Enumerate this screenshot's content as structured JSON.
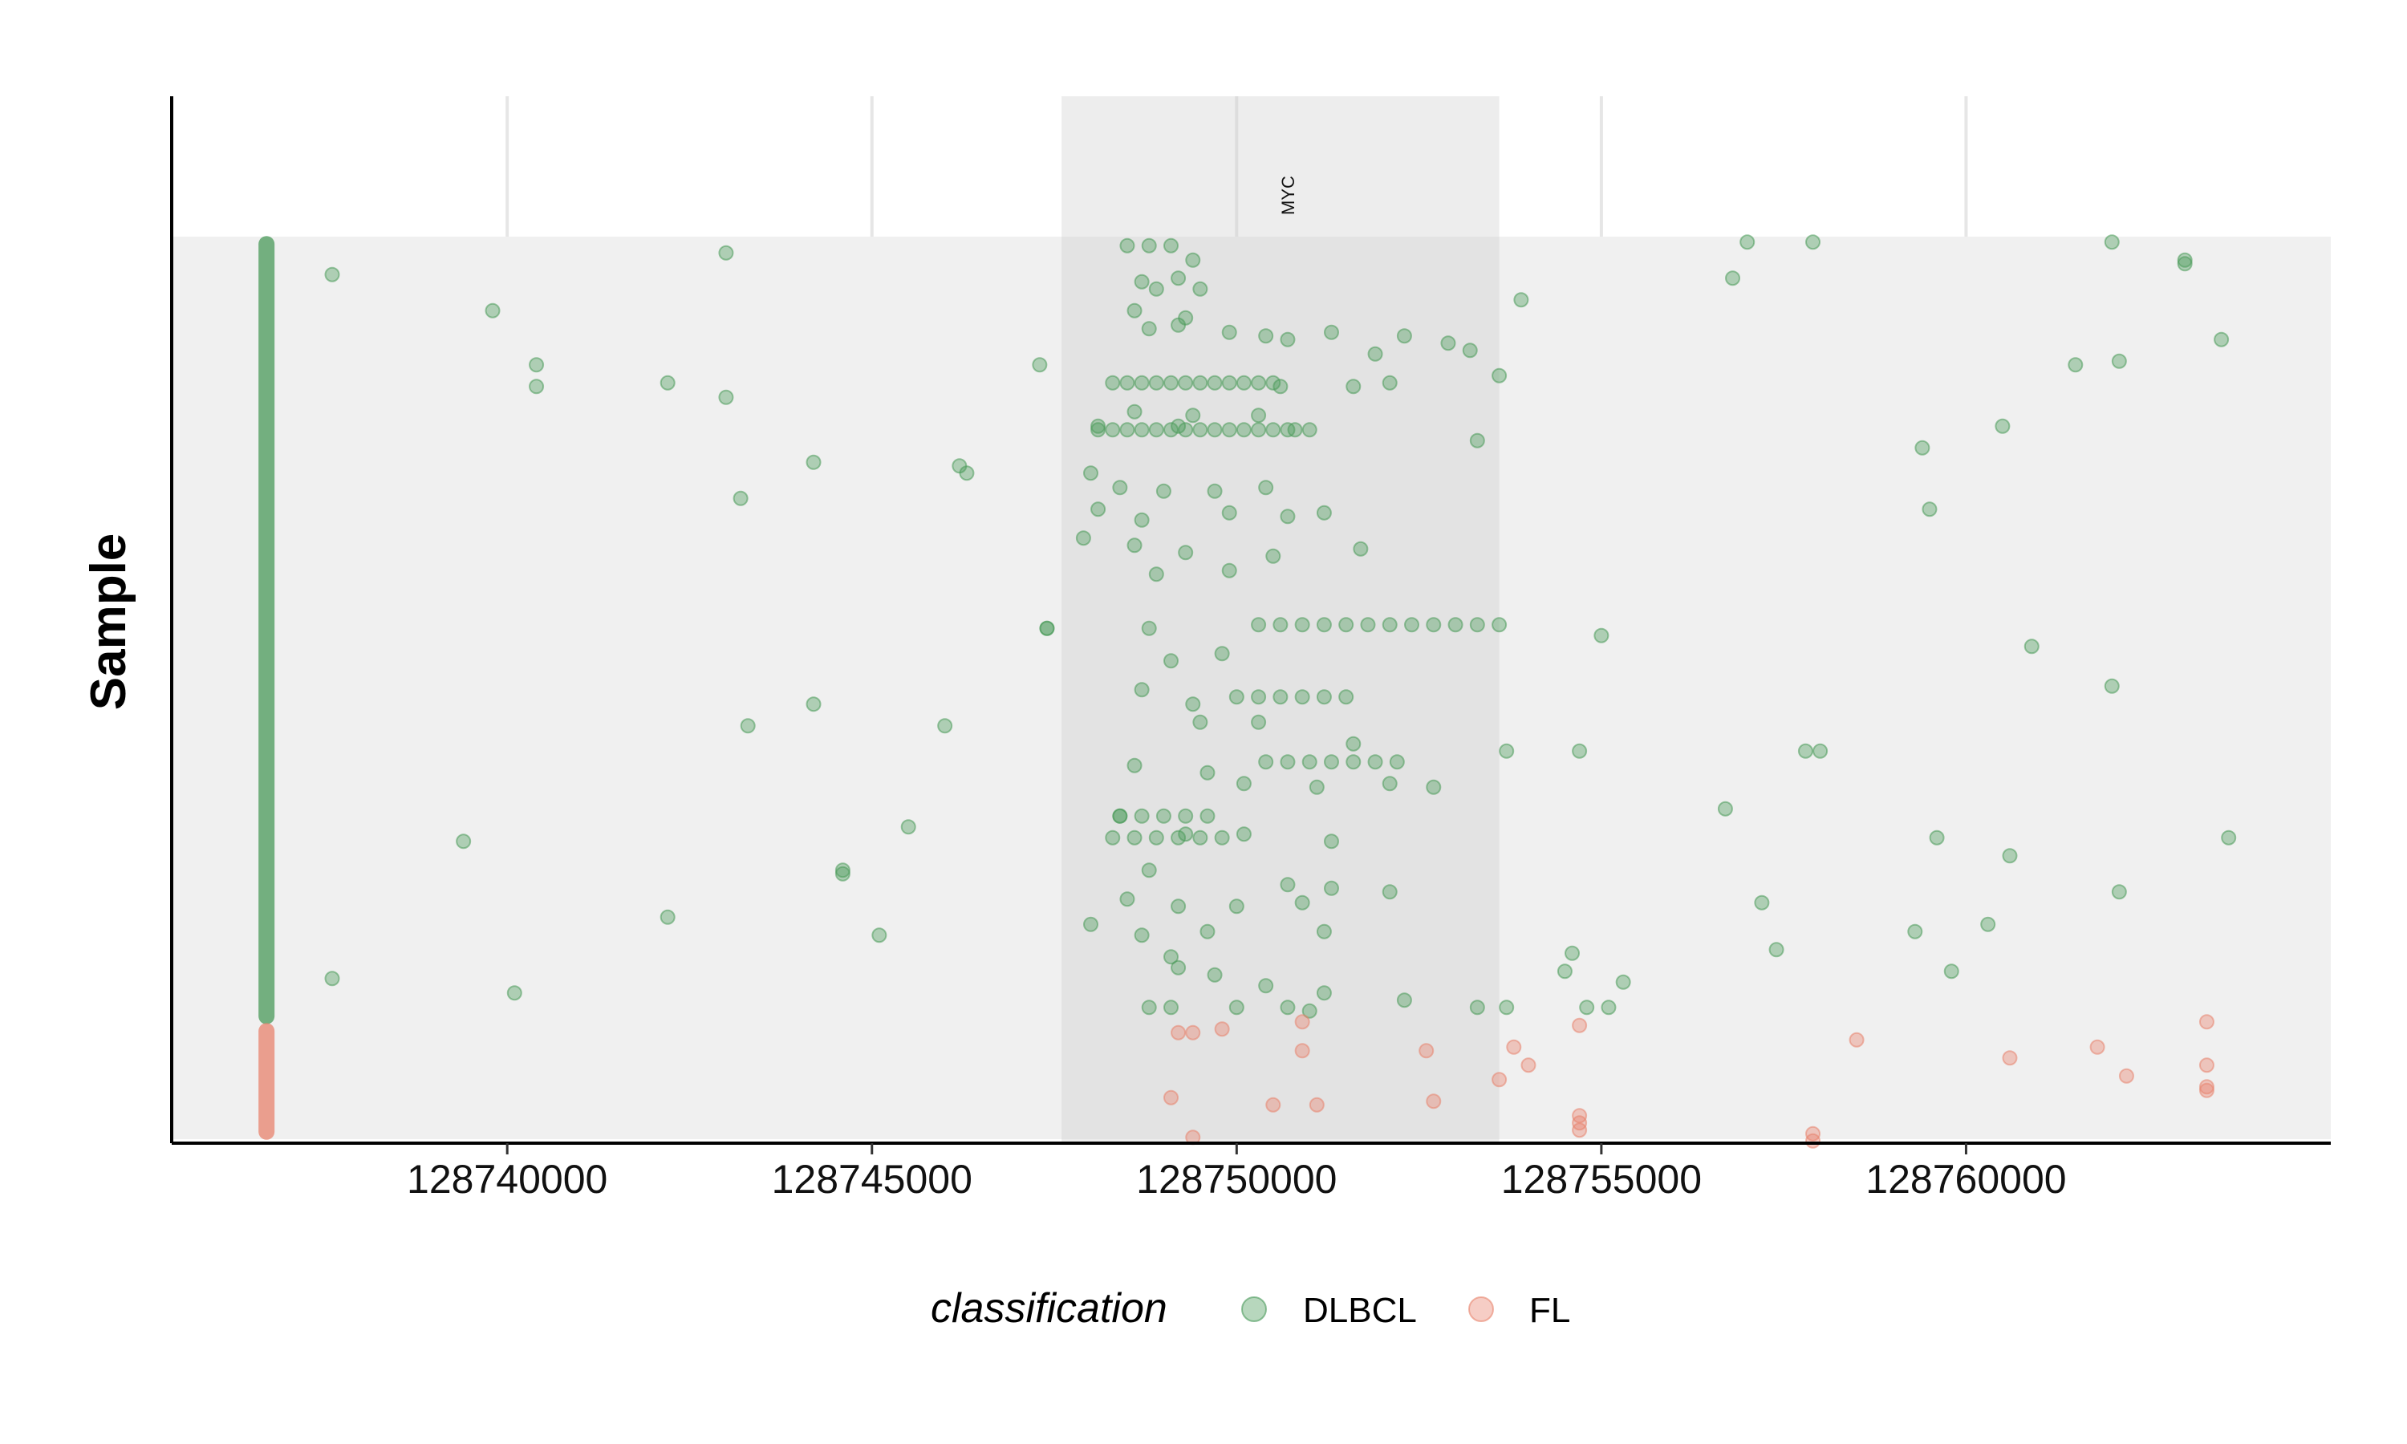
{
  "chart_data": {
    "type": "scatter",
    "title": "",
    "xlabel": "",
    "ylabel": "Sample",
    "xlim": [
      128735400,
      128765000
    ],
    "x_ticks": [
      128740000,
      128745000,
      128750000,
      128755000,
      128760000
    ],
    "x_tick_labels": [
      "128740000",
      "128745000",
      "128750000",
      "128755000",
      "128760000"
    ],
    "grid": true,
    "legend": {
      "title": "classification",
      "placement": "bottom"
    },
    "highlight_region": {
      "x": [
        128747600,
        128753600
      ],
      "label": "MYC",
      "label_x": 128750700
    },
    "sample_count": 250,
    "sample_bar_x": 128736700,
    "series": [
      {
        "name": "DLBCL",
        "color": "#4a9a5a",
        "sample_range": [
          0,
          217
        ],
        "points": [
          [
            128737600,
            10
          ],
          [
            128739800,
            20
          ],
          [
            128740400,
            35
          ],
          [
            128740400,
            41
          ],
          [
            128742200,
            40
          ],
          [
            128743000,
            44
          ],
          [
            128743000,
            4
          ],
          [
            128744200,
            62
          ],
          [
            128743200,
            72
          ],
          [
            128746200,
            63
          ],
          [
            128746300,
            65
          ],
          [
            128747300,
            35
          ],
          [
            128747400,
            108
          ],
          [
            128744200,
            129
          ],
          [
            128743300,
            135
          ],
          [
            128746000,
            135
          ],
          [
            128745500,
            163
          ],
          [
            128739400,
            167
          ],
          [
            128744600,
            175
          ],
          [
            128744600,
            176
          ],
          [
            128742200,
            188
          ],
          [
            128745100,
            193
          ],
          [
            128737600,
            205
          ],
          [
            128740100,
            209
          ],
          [
            128748500,
            2
          ],
          [
            128748800,
            2
          ],
          [
            128749100,
            2
          ],
          [
            128749400,
            6
          ],
          [
            128748700,
            12
          ],
          [
            128749200,
            11
          ],
          [
            128748900,
            14
          ],
          [
            128749500,
            14
          ],
          [
            128748600,
            20
          ],
          [
            128749300,
            22
          ],
          [
            128748800,
            25
          ],
          [
            128749200,
            24
          ],
          [
            128749900,
            26
          ],
          [
            128750400,
            27
          ],
          [
            128750700,
            28
          ],
          [
            128751300,
            26
          ],
          [
            128752300,
            27
          ],
          [
            128752900,
            29
          ],
          [
            128753200,
            31
          ],
          [
            128751900,
            32
          ],
          [
            128753600,
            38
          ],
          [
            128750600,
            41
          ],
          [
            128751600,
            41
          ],
          [
            128752100,
            40
          ],
          [
            128748600,
            48
          ],
          [
            128749400,
            49
          ],
          [
            128750300,
            49
          ],
          [
            128748100,
            52
          ],
          [
            128749200,
            52
          ],
          [
            128750800,
            53
          ],
          [
            128751000,
            53
          ],
          [
            128748000,
            65
          ],
          [
            128748400,
            69
          ],
          [
            128749000,
            70
          ],
          [
            128749700,
            70
          ],
          [
            128750400,
            69
          ],
          [
            128748100,
            75
          ],
          [
            128748700,
            78
          ],
          [
            128749900,
            76
          ],
          [
            128750700,
            77
          ],
          [
            128751200,
            76
          ],
          [
            128751700,
            86
          ],
          [
            128747900,
            83
          ],
          [
            128748600,
            85
          ],
          [
            128749300,
            87
          ],
          [
            128750500,
            88
          ],
          [
            128748900,
            93
          ],
          [
            128749900,
            92
          ],
          [
            128747400,
            108
          ],
          [
            128748800,
            108
          ],
          [
            128749800,
            115
          ],
          [
            128749100,
            117
          ],
          [
            128748700,
            125
          ],
          [
            128749400,
            129
          ],
          [
            128749500,
            134
          ],
          [
            128750300,
            134
          ],
          [
            128751600,
            140
          ],
          [
            128748600,
            146
          ],
          [
            128749600,
            148
          ],
          [
            128750100,
            151
          ],
          [
            128751100,
            152
          ],
          [
            128752100,
            151
          ],
          [
            128752700,
            152
          ],
          [
            128753700,
            142
          ],
          [
            128748400,
            160
          ],
          [
            128749300,
            165
          ],
          [
            128750100,
            165
          ],
          [
            128751300,
            167
          ],
          [
            128748800,
            175
          ],
          [
            128750700,
            179
          ],
          [
            128751300,
            180
          ],
          [
            128752100,
            181
          ],
          [
            128748500,
            183
          ],
          [
            128749200,
            185
          ],
          [
            128750000,
            185
          ],
          [
            128750900,
            184
          ],
          [
            128748000,
            190
          ],
          [
            128748700,
            193
          ],
          [
            128749600,
            192
          ],
          [
            128751200,
            192
          ],
          [
            128749100,
            199
          ],
          [
            128749200,
            202
          ],
          [
            128749700,
            204
          ],
          [
            128750400,
            207
          ],
          [
            128751200,
            209
          ],
          [
            128748800,
            213
          ],
          [
            128749100,
            213
          ],
          [
            128750000,
            213
          ],
          [
            128750700,
            213
          ],
          [
            128751000,
            214
          ],
          [
            128752300,
            211
          ],
          [
            128753300,
            213
          ],
          [
            128753700,
            213
          ],
          [
            128754600,
            198
          ],
          [
            128754500,
            203
          ],
          [
            128755300,
            206
          ],
          [
            128755000,
            110
          ],
          [
            128754700,
            142
          ],
          [
            128754800,
            213
          ],
          [
            128755100,
            213
          ],
          [
            128753900,
            17
          ],
          [
            128753300,
            56
          ],
          [
            128757000,
            1
          ],
          [
            128757900,
            1
          ],
          [
            128762000,
            1
          ],
          [
            128763000,
            6
          ],
          [
            128763000,
            7
          ],
          [
            128756800,
            11
          ],
          [
            128763500,
            28
          ],
          [
            128762100,
            34
          ],
          [
            128761500,
            35
          ],
          [
            128760500,
            52
          ],
          [
            128759400,
            58
          ],
          [
            128759500,
            75
          ],
          [
            128760900,
            113
          ],
          [
            128762000,
            124
          ],
          [
            128757800,
            142
          ],
          [
            128758000,
            142
          ],
          [
            128756700,
            158
          ],
          [
            128759600,
            166
          ],
          [
            128763600,
            166
          ],
          [
            128760600,
            171
          ],
          [
            128762100,
            181
          ],
          [
            128757200,
            184
          ],
          [
            128759300,
            192
          ],
          [
            128760300,
            190
          ],
          [
            128757400,
            197
          ],
          [
            128759800,
            203
          ],
          [
            128748300,
            40
          ],
          [
            128748500,
            40
          ],
          [
            128748700,
            40
          ],
          [
            128748900,
            40
          ],
          [
            128749100,
            40
          ],
          [
            128749300,
            40
          ],
          [
            128749500,
            40
          ],
          [
            128749700,
            40
          ],
          [
            128749900,
            40
          ],
          [
            128750100,
            40
          ],
          [
            128750300,
            40
          ],
          [
            128750500,
            40
          ],
          [
            128748100,
            53
          ],
          [
            128748300,
            53
          ],
          [
            128748500,
            53
          ],
          [
            128748700,
            53
          ],
          [
            128748900,
            53
          ],
          [
            128749100,
            53
          ],
          [
            128749300,
            53
          ],
          [
            128749500,
            53
          ],
          [
            128749700,
            53
          ],
          [
            128749900,
            53
          ],
          [
            128750100,
            53
          ],
          [
            128750300,
            53
          ],
          [
            128750500,
            53
          ],
          [
            128750700,
            53
          ],
          [
            128750300,
            107
          ],
          [
            128750600,
            107
          ],
          [
            128750900,
            107
          ],
          [
            128751200,
            107
          ],
          [
            128751500,
            107
          ],
          [
            128751800,
            107
          ],
          [
            128752100,
            107
          ],
          [
            128752400,
            107
          ],
          [
            128752700,
            107
          ],
          [
            128753000,
            107
          ],
          [
            128753300,
            107
          ],
          [
            128753600,
            107
          ],
          [
            128750000,
            127
          ],
          [
            128750300,
            127
          ],
          [
            128750600,
            127
          ],
          [
            128750900,
            127
          ],
          [
            128751200,
            127
          ],
          [
            128751500,
            127
          ],
          [
            128750400,
            145
          ],
          [
            128750700,
            145
          ],
          [
            128751000,
            145
          ],
          [
            128751300,
            145
          ],
          [
            128751600,
            145
          ],
          [
            128751900,
            145
          ],
          [
            128752200,
            145
          ],
          [
            128748400,
            160
          ],
          [
            128748700,
            160
          ],
          [
            128749000,
            160
          ],
          [
            128749300,
            160
          ],
          [
            128749600,
            160
          ],
          [
            128748300,
            166
          ],
          [
            128748600,
            166
          ],
          [
            128748900,
            166
          ],
          [
            128749200,
            166
          ],
          [
            128749500,
            166
          ],
          [
            128749800,
            166
          ]
        ]
      },
      {
        "name": "FL",
        "color": "#e8836d",
        "sample_range": [
          218,
          249
        ],
        "points": [
          [
            128749200,
            220
          ],
          [
            128749400,
            220
          ],
          [
            128749800,
            219
          ],
          [
            128750900,
            225
          ],
          [
            128752600,
            225
          ],
          [
            128753800,
            224
          ],
          [
            128754700,
            218
          ],
          [
            128758500,
            222
          ],
          [
            128760600,
            227
          ],
          [
            128761800,
            224
          ],
          [
            128762200,
            232
          ],
          [
            128763300,
            217
          ],
          [
            128763300,
            229
          ],
          [
            128763300,
            235
          ],
          [
            128763300,
            236
          ],
          [
            128754000,
            229
          ],
          [
            128753600,
            233
          ],
          [
            128752700,
            239
          ],
          [
            128751100,
            240
          ],
          [
            128750500,
            240
          ],
          [
            128749100,
            238
          ],
          [
            128754700,
            243
          ],
          [
            128754700,
            245
          ],
          [
            128754700,
            247
          ],
          [
            128757900,
            248
          ],
          [
            128757900,
            250
          ],
          [
            128749400,
            249
          ],
          [
            128750900,
            217
          ]
        ]
      }
    ]
  }
}
